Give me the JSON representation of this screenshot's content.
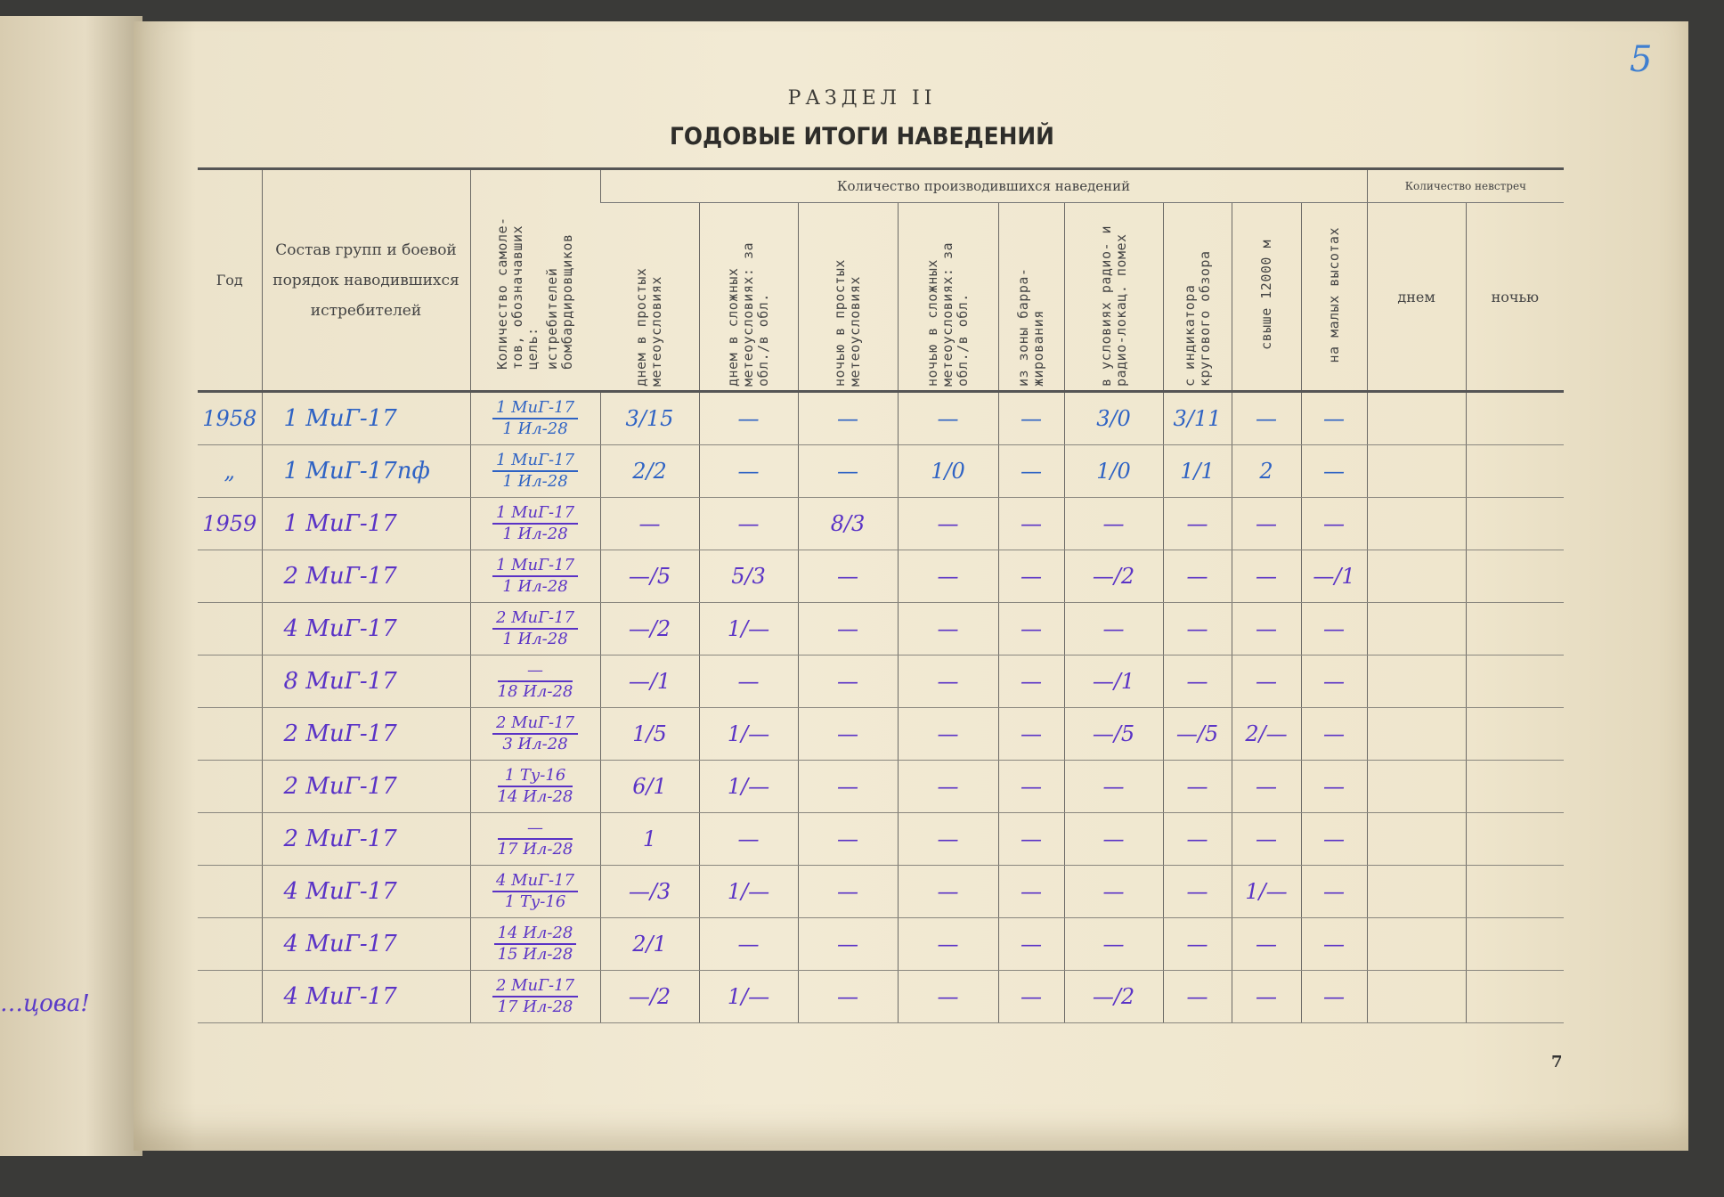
{
  "section": "РАЗДЕЛ II",
  "title": "ГОДОВЫЕ ИТОГИ НАВЕДЕНИЙ",
  "page_number": "7",
  "corner_mark": "5",
  "margin_note": "…цова!",
  "header": {
    "year": "Год",
    "group": "Состав групп и боевой порядок наводившихся истребителей",
    "targets": "Количество самоле-тов, обозначавших цель:",
    "targets_sub": "истребителей бомбардировщиков",
    "guidance_group": "Количество производившихся наведений",
    "guidance_cols": [
      "днем в простых метеоусловиях",
      "днем в сложных метеоусловиях: за обл./в обл.",
      "ночью в простых метеоусловиях",
      "ночью в сложных метеоусловиях: за обл./в обл.",
      "из зоны барра-жирования",
      "в условиях радио- и радио-локац. помех",
      "с индикатора кругового обзора",
      "свыше 12000 м",
      "на малых высотах"
    ],
    "misses_group": "Количество невстреч",
    "misses_cols": [
      "днем",
      "ночью"
    ]
  },
  "rows": [
    {
      "year": "1958",
      "group": "1 МиГ-17",
      "t_top": "1 МиГ-17",
      "t_bot": "1 Ил-28",
      "v": [
        "3/15",
        "—",
        "—",
        "—",
        "—",
        "3/0",
        "3/11",
        "—",
        "—"
      ],
      "ink": "blue"
    },
    {
      "year": "„",
      "group": "1 МиГ-17пф",
      "t_top": "1 МиГ-17",
      "t_bot": "1 Ил-28",
      "v": [
        "2/2",
        "—",
        "—",
        "1/0",
        "—",
        "1/0",
        "1/1",
        "2",
        "—"
      ],
      "ink": "blue"
    },
    {
      "year": "1959",
      "group": "1 МиГ-17",
      "t_top": "1 МиГ-17",
      "t_bot": "1 Ил-28",
      "v": [
        "—",
        "—",
        "8/3",
        "—",
        "—",
        "—",
        "—",
        "—",
        "—"
      ],
      "ink": "purple"
    },
    {
      "year": "",
      "group": "2 МиГ-17",
      "t_top": "1 МиГ-17",
      "t_bot": "1 Ил-28",
      "v": [
        "—/5",
        "5/3",
        "—",
        "—",
        "—",
        "—/2",
        "—",
        "—",
        "—/1"
      ],
      "ink": "purple"
    },
    {
      "year": "",
      "group": "4 МиГ-17",
      "t_top": "2 МиГ-17",
      "t_bot": "1 Ил-28",
      "v": [
        "—/2",
        "1/—",
        "—",
        "—",
        "—",
        "—",
        "—",
        "—",
        "—"
      ],
      "ink": "purple"
    },
    {
      "year": "",
      "group": "8 МиГ-17",
      "t_top": "—",
      "t_bot": "18 Ил-28",
      "v": [
        "—/1",
        "—",
        "—",
        "—",
        "—",
        "—/1",
        "—",
        "—",
        "—"
      ],
      "ink": "purple"
    },
    {
      "year": "",
      "group": "2 МиГ-17",
      "t_top": "2 МиГ-17",
      "t_bot": "3 Ил-28",
      "v": [
        "1/5",
        "1/—",
        "—",
        "—",
        "—",
        "—/5",
        "—/5",
        "2/—",
        "—"
      ],
      "ink": "purple"
    },
    {
      "year": "",
      "group": "2 МиГ-17",
      "t_top": "1 Ту-16",
      "t_bot": "14 Ил-28",
      "v": [
        "6/1",
        "1/—",
        "—",
        "—",
        "—",
        "—",
        "—",
        "—",
        "—"
      ],
      "ink": "purple"
    },
    {
      "year": "",
      "group": "2 МиГ-17",
      "t_top": "—",
      "t_bot": "17 Ил-28",
      "v": [
        "1",
        "—",
        "—",
        "—",
        "—",
        "—",
        "—",
        "—",
        "—"
      ],
      "ink": "purple"
    },
    {
      "year": "",
      "group": "4 МиГ-17",
      "t_top": "4 МиГ-17",
      "t_bot": "1 Ту-16",
      "v": [
        "—/3",
        "1/—",
        "—",
        "—",
        "—",
        "—",
        "—",
        "1/—",
        "—"
      ],
      "ink": "purple"
    },
    {
      "year": "",
      "group": "4 МиГ-17",
      "t_top": "14 Ил-28",
      "t_bot": "15 Ил-28",
      "v": [
        "2/1",
        "—",
        "—",
        "—",
        "—",
        "—",
        "—",
        "—",
        "—"
      ],
      "ink": "purple"
    },
    {
      "year": "",
      "group": "4 МиГ-17",
      "t_top": "2 МиГ-17",
      "t_bot": "17 Ил-28",
      "v": [
        "—/2",
        "1/—",
        "—",
        "—",
        "—",
        "—/2",
        "—",
        "—",
        "—"
      ],
      "ink": "purple"
    }
  ],
  "colors": {
    "blue_ink": "#2f63c4",
    "purple_ink": "#5a33c6",
    "paper": "#f2ead4"
  }
}
